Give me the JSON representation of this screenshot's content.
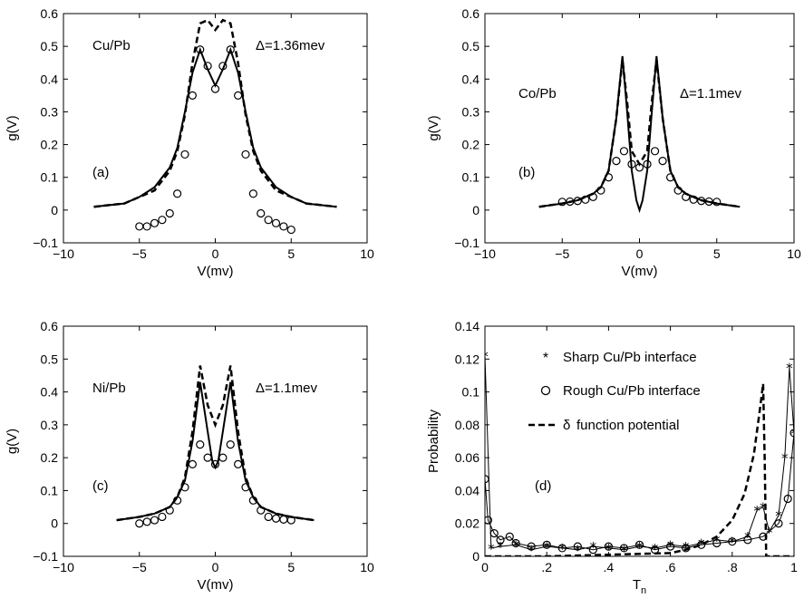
{
  "chart_data": [
    {
      "type": "line",
      "panel": "(a)",
      "xlabel": "V(mv)",
      "ylabel": "g(V)",
      "xlim": [
        -10,
        10
      ],
      "ylim": [
        -0.1,
        0.6
      ],
      "xticks": [
        -10,
        -5,
        0,
        5,
        10
      ],
      "yticks": [
        -0.1,
        0,
        0.1,
        0.2,
        0.3,
        0.4,
        0.5,
        0.6
      ],
      "annotations": [
        "Cu/Pb",
        "Δ=1.36mev",
        "(a)"
      ],
      "series": [
        {
          "style": "dashed",
          "x": [
            -8,
            -6,
            -5,
            -4,
            -3,
            -2.5,
            -2,
            -1.5,
            -1,
            -0.5,
            0,
            0.5,
            1,
            1.5,
            2,
            2.5,
            3,
            4,
            5,
            6,
            8
          ],
          "y": [
            0.01,
            0.02,
            0.04,
            0.06,
            0.12,
            0.18,
            0.29,
            0.45,
            0.57,
            0.58,
            0.55,
            0.58,
            0.57,
            0.45,
            0.29,
            0.18,
            0.12,
            0.06,
            0.04,
            0.02,
            0.01
          ]
        },
        {
          "style": "solid",
          "x": [
            -8,
            -6,
            -5,
            -4,
            -3,
            -2.5,
            -2,
            -1.5,
            -1,
            -0.5,
            0,
            0.5,
            1,
            1.5,
            2,
            2.5,
            3,
            4,
            5,
            6,
            8
          ],
          "y": [
            0.01,
            0.02,
            0.04,
            0.07,
            0.13,
            0.19,
            0.3,
            0.42,
            0.49,
            0.43,
            0.38,
            0.43,
            0.49,
            0.42,
            0.3,
            0.19,
            0.13,
            0.07,
            0.04,
            0.02,
            0.01
          ]
        },
        {
          "style": "circles",
          "x": [
            -5,
            -4.5,
            -4,
            -3.5,
            -3,
            -2.5,
            -2,
            -1.5,
            -1,
            -0.5,
            0,
            0.5,
            1,
            1.5,
            2,
            2.5,
            3,
            3.5,
            4,
            4.5,
            5
          ],
          "y": [
            -0.05,
            -0.05,
            -0.04,
            -0.03,
            -0.01,
            0.05,
            0.17,
            0.35,
            0.49,
            0.44,
            0.37,
            0.44,
            0.49,
            0.35,
            0.17,
            0.05,
            -0.01,
            -0.03,
            -0.04,
            -0.05,
            -0.06
          ]
        }
      ]
    },
    {
      "type": "line",
      "panel": "(b)",
      "xlabel": "V(mv)",
      "ylabel": "g(V)",
      "xlim": [
        -10,
        10
      ],
      "ylim": [
        -0.1,
        0.6
      ],
      "xticks": [
        -10,
        -5,
        0,
        5,
        10
      ],
      "yticks": [
        -0.1,
        0,
        0.1,
        0.2,
        0.3,
        0.4,
        0.5,
        0.6
      ],
      "annotations": [
        "Co/Pb",
        "Δ=1.1mev",
        "(b)"
      ],
      "series": [
        {
          "style": "dashed",
          "x": [
            -6.5,
            -5,
            -4,
            -3,
            -2.5,
            -2,
            -1.5,
            -1.1,
            -0.8,
            -0.5,
            0,
            0.5,
            0.8,
            1.1,
            1.5,
            2,
            2.5,
            3,
            4,
            5,
            6.5
          ],
          "y": [
            0.01,
            0.02,
            0.03,
            0.05,
            0.07,
            0.12,
            0.28,
            0.46,
            0.33,
            0.18,
            0.14,
            0.18,
            0.33,
            0.46,
            0.28,
            0.12,
            0.07,
            0.05,
            0.03,
            0.02,
            0.01
          ]
        },
        {
          "style": "solid",
          "x": [
            -6.5,
            -5,
            -4,
            -3,
            -2.5,
            -2,
            -1.5,
            -1.1,
            -0.8,
            -0.5,
            -0.2,
            0,
            0.2,
            0.5,
            0.8,
            1.1,
            1.5,
            2,
            2.5,
            3,
            4,
            5,
            6.5
          ],
          "y": [
            0.01,
            0.02,
            0.03,
            0.05,
            0.07,
            0.12,
            0.28,
            0.47,
            0.3,
            0.12,
            0.03,
            0.0,
            0.03,
            0.12,
            0.3,
            0.47,
            0.28,
            0.12,
            0.07,
            0.05,
            0.03,
            0.02,
            0.01
          ]
        },
        {
          "style": "circles",
          "x": [
            -5,
            -4.5,
            -4,
            -3.5,
            -3,
            -2.5,
            -2,
            -1.5,
            -1,
            -0.5,
            0,
            0.5,
            1,
            1.5,
            2,
            2.5,
            3,
            3.5,
            4,
            4.5,
            5
          ],
          "y": [
            0.025,
            0.026,
            0.028,
            0.032,
            0.04,
            0.06,
            0.1,
            0.15,
            0.18,
            0.14,
            0.13,
            0.14,
            0.18,
            0.15,
            0.1,
            0.06,
            0.04,
            0.032,
            0.028,
            0.026,
            0.025
          ]
        }
      ]
    },
    {
      "type": "line",
      "panel": "(c)",
      "xlabel": "V(mv)",
      "ylabel": "g(V)",
      "xlim": [
        -10,
        10
      ],
      "ylim": [
        -0.1,
        0.6
      ],
      "xticks": [
        -10,
        -5,
        0,
        5,
        10
      ],
      "yticks": [
        -0.1,
        0,
        0.1,
        0.2,
        0.3,
        0.4,
        0.5,
        0.6
      ],
      "annotations": [
        "Ni/Pb",
        "Δ=1.1mev",
        "(c)"
      ],
      "series": [
        {
          "style": "dashed",
          "x": [
            -6.5,
            -5,
            -4,
            -3,
            -2.5,
            -2,
            -1.5,
            -1,
            -0.5,
            0,
            0.5,
            1,
            1.5,
            2,
            2.5,
            3,
            4,
            5,
            6.5
          ],
          "y": [
            0.01,
            0.02,
            0.03,
            0.05,
            0.08,
            0.14,
            0.28,
            0.48,
            0.36,
            0.3,
            0.36,
            0.48,
            0.28,
            0.14,
            0.08,
            0.05,
            0.03,
            0.02,
            0.01
          ]
        },
        {
          "style": "solid",
          "x": [
            -6.5,
            -5,
            -4,
            -3,
            -2.5,
            -2,
            -1.5,
            -1,
            -0.5,
            -0.2,
            0,
            0.2,
            0.5,
            1,
            1.5,
            2,
            2.5,
            3,
            4,
            5,
            6.5
          ],
          "y": [
            0.01,
            0.02,
            0.03,
            0.05,
            0.08,
            0.13,
            0.25,
            0.43,
            0.28,
            0.19,
            0.17,
            0.19,
            0.28,
            0.43,
            0.25,
            0.13,
            0.08,
            0.05,
            0.03,
            0.02,
            0.01
          ]
        },
        {
          "style": "circles",
          "x": [
            -5,
            -4.5,
            -4,
            -3.5,
            -3,
            -2.5,
            -2,
            -1.5,
            -1,
            -0.5,
            0,
            0.5,
            1,
            1.5,
            2,
            2.5,
            3,
            3.5,
            4,
            4.5,
            5
          ],
          "y": [
            0.0,
            0.005,
            0.01,
            0.02,
            0.04,
            0.07,
            0.11,
            0.18,
            0.24,
            0.2,
            0.18,
            0.2,
            0.24,
            0.18,
            0.11,
            0.07,
            0.04,
            0.02,
            0.015,
            0.012,
            0.01
          ]
        }
      ]
    },
    {
      "type": "line",
      "panel": "(d)",
      "xlabel": "T_n",
      "ylabel": "Probability",
      "xlim": [
        0,
        1
      ],
      "ylim": [
        0,
        0.14
      ],
      "xticks": [
        0,
        0.2,
        0.4,
        0.6,
        0.8,
        1
      ],
      "yticks": [
        0,
        0.02,
        0.04,
        0.06,
        0.08,
        0.1,
        0.12,
        0.14
      ],
      "annotations": [
        "(d)"
      ],
      "legend": [
        "Sharp Cu/Pb interface",
        "Rough Cu/Pb interface",
        "function potential"
      ],
      "legend_markers": [
        "*",
        "o",
        "δ"
      ],
      "series": [
        {
          "name": "Sharp Cu/Pb interface",
          "style": "stars",
          "x": [
            0,
            0.02,
            0.05,
            0.1,
            0.15,
            0.2,
            0.25,
            0.3,
            0.35,
            0.4,
            0.45,
            0.5,
            0.55,
            0.6,
            0.65,
            0.7,
            0.75,
            0.8,
            0.85,
            0.88,
            0.9,
            0.92,
            0.95,
            0.97,
            0.985,
            1.0
          ],
          "y": [
            0.122,
            0.005,
            0.006,
            0.007,
            0.004,
            0.006,
            0.005,
            0.004,
            0.006,
            0.005,
            0.004,
            0.006,
            0.005,
            0.007,
            0.006,
            0.008,
            0.01,
            0.009,
            0.012,
            0.028,
            0.03,
            0.015,
            0.025,
            0.06,
            0.115,
            0.075
          ]
        },
        {
          "name": "Rough Cu/Pb interface",
          "style": "circles",
          "x": [
            0,
            0.01,
            0.03,
            0.05,
            0.08,
            0.1,
            0.15,
            0.2,
            0.25,
            0.3,
            0.35,
            0.4,
            0.45,
            0.5,
            0.55,
            0.6,
            0.65,
            0.7,
            0.75,
            0.8,
            0.85,
            0.9,
            0.95,
            0.98,
            1.0
          ],
          "y": [
            0.047,
            0.022,
            0.014,
            0.01,
            0.012,
            0.008,
            0.006,
            0.007,
            0.005,
            0.006,
            0.004,
            0.006,
            0.005,
            0.007,
            0.004,
            0.006,
            0.005,
            0.007,
            0.008,
            0.009,
            0.01,
            0.012,
            0.02,
            0.035,
            0.075
          ]
        },
        {
          "name": "function potential",
          "style": "dashed",
          "x": [
            0,
            0.2,
            0.4,
            0.6,
            0.65,
            0.7,
            0.75,
            0.8,
            0.84,
            0.87,
            0.89,
            0.9,
            0.905,
            0.91,
            0.92,
            1.0
          ],
          "y": [
            0,
            0,
            0.001,
            0.002,
            0.004,
            0.007,
            0.012,
            0.022,
            0.038,
            0.062,
            0.09,
            0.105,
            0.06,
            0.0,
            0.0,
            0.0
          ]
        }
      ]
    }
  ]
}
